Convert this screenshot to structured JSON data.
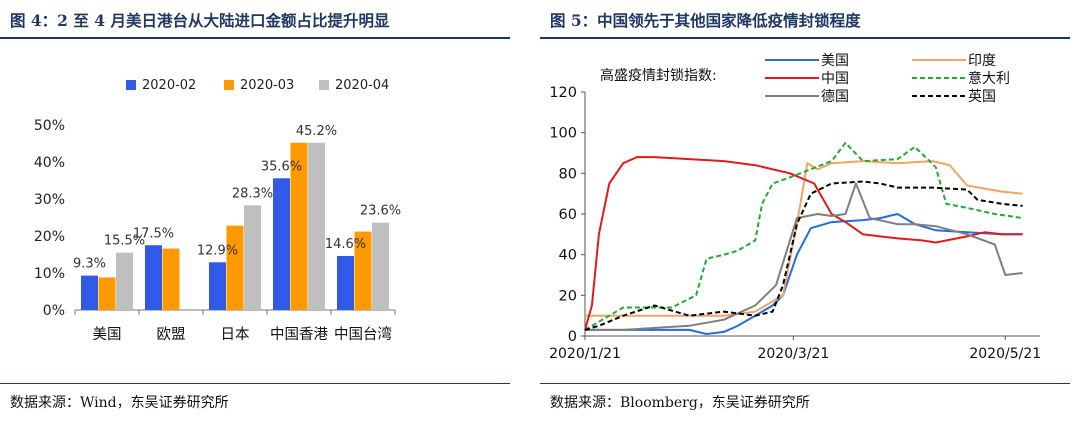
{
  "left": {
    "title": "图 4：2 至 4 月美日港台从大陆进口金额占比提升明显",
    "source": "数据来源：Wind，东吴证券研究所"
  },
  "right": {
    "title": "图 5：中国领先于其他国家降低疫情封锁程度",
    "source": "数据来源：Bloomberg，东吴证券研究所"
  },
  "chart_data": [
    {
      "type": "bar",
      "categories": [
        "美国",
        "欧盟",
        "日本",
        "中国香港",
        "中国台湾"
      ],
      "series": [
        {
          "name": "2020-02",
          "color": "#2f5be6",
          "values": [
            9.3,
            17.5,
            12.9,
            35.6,
            14.6
          ]
        },
        {
          "name": "2020-03",
          "color": "#ff9900",
          "values": [
            8.8,
            16.6,
            22.8,
            45.2,
            21.2
          ]
        },
        {
          "name": "2020-04",
          "color": "#bfbfbf",
          "values": [
            15.5,
            null,
            28.3,
            45.2,
            23.6
          ]
        }
      ],
      "data_labels": [
        {
          "text": "9.3%",
          "category": 0,
          "series": 0
        },
        {
          "text": "15.5%",
          "category": 0,
          "series": 2
        },
        {
          "text": "17.5%",
          "category": 1,
          "series": 0
        },
        {
          "text": "12.9%",
          "category": 2,
          "series": 0
        },
        {
          "text": "28.3%",
          "category": 2,
          "series": 2
        },
        {
          "text": "35.6%",
          "category": 3,
          "series": 0
        },
        {
          "text": "45.2%",
          "category": 3,
          "series": 2
        },
        {
          "text": "14.6%",
          "category": 4,
          "series": 0
        },
        {
          "text": "23.6%",
          "category": 4,
          "series": 2
        }
      ],
      "yticks": [
        "0%",
        "10%",
        "20%",
        "30%",
        "40%",
        "50%"
      ],
      "ylim": [
        0,
        50
      ],
      "legend": "top",
      "grid": false
    },
    {
      "type": "line",
      "legend_title": "高盛疫情封锁指数:",
      "xticks": [
        "2020/1/21",
        "2020/3/21",
        "2020/5/21"
      ],
      "yticks": [
        0,
        20,
        40,
        60,
        80,
        100,
        120
      ],
      "ylim": [
        0,
        120
      ],
      "xlim": [
        "2020-01-21",
        "2020-05-31"
      ],
      "legend": "top",
      "grid": false,
      "series": [
        {
          "name": "美国",
          "color": "#1f6fe0",
          "dash": "solid",
          "x": [
            "2020-01-21",
            "2020-02-05",
            "2020-02-20",
            "2020-02-25",
            "2020-03-01",
            "2020-03-05",
            "2020-03-10",
            "2020-03-15",
            "2020-03-18",
            "2020-03-22",
            "2020-03-26",
            "2020-04-01",
            "2020-04-10",
            "2020-04-15",
            "2020-04-20",
            "2020-04-25",
            "2020-05-01",
            "2020-05-10",
            "2020-05-20",
            "2020-05-26"
          ],
          "y": [
            3,
            3,
            3,
            1,
            2,
            5,
            10,
            15,
            20,
            40,
            53,
            56,
            57,
            58,
            60,
            55,
            52,
            51,
            50,
            50
          ]
        },
        {
          "name": "印度",
          "color": "#f4a460",
          "dash": "solid",
          "x": [
            "2020-01-21",
            "2020-02-01",
            "2020-02-20",
            "2020-03-01",
            "2020-03-10",
            "2020-03-18",
            "2020-03-22",
            "2020-03-25",
            "2020-03-28",
            "2020-04-01",
            "2020-04-10",
            "2020-04-20",
            "2020-04-30",
            "2020-05-05",
            "2020-05-10",
            "2020-05-20",
            "2020-05-26"
          ],
          "y": [
            10,
            10,
            10,
            10,
            12,
            20,
            55,
            85,
            82,
            85,
            86,
            85,
            86,
            84,
            74,
            71,
            70
          ]
        },
        {
          "name": "中国",
          "color": "#e31a1c",
          "dash": "solid",
          "x": [
            "2020-01-21",
            "2020-01-23",
            "2020-01-25",
            "2020-01-28",
            "2020-02-01",
            "2020-02-05",
            "2020-02-10",
            "2020-02-20",
            "2020-03-01",
            "2020-03-10",
            "2020-03-20",
            "2020-03-27",
            "2020-04-01",
            "2020-04-05",
            "2020-04-10",
            "2020-04-15",
            "2020-04-20",
            "2020-04-27",
            "2020-05-01",
            "2020-05-10",
            "2020-05-15",
            "2020-05-20",
            "2020-05-26"
          ],
          "y": [
            3,
            15,
            50,
            75,
            85,
            88,
            88,
            87,
            86,
            84,
            80,
            75,
            60,
            56,
            50,
            49,
            48,
            47,
            46,
            49,
            51,
            50,
            50
          ]
        },
        {
          "name": "意大利",
          "color": "#22aa33",
          "dash": "dashed",
          "x": [
            "2020-01-21",
            "2020-02-01",
            "2020-02-15",
            "2020-02-22",
            "2020-02-25",
            "2020-03-01",
            "2020-03-05",
            "2020-03-10",
            "2020-03-12",
            "2020-03-15",
            "2020-03-20",
            "2020-04-01",
            "2020-04-05",
            "2020-04-10",
            "2020-04-20",
            "2020-04-25",
            "2020-05-01",
            "2020-05-04",
            "2020-05-10",
            "2020-05-18",
            "2020-05-26"
          ],
          "y": [
            3,
            14,
            14,
            20,
            38,
            40,
            42,
            47,
            65,
            75,
            78,
            86,
            95,
            86,
            87,
            93,
            83,
            65,
            63,
            60,
            58
          ]
        },
        {
          "name": "德国",
          "color": "#7f7f7f",
          "dash": "solid",
          "x": [
            "2020-01-21",
            "2020-02-01",
            "2020-02-20",
            "2020-03-01",
            "2020-03-10",
            "2020-03-16",
            "2020-03-22",
            "2020-03-28",
            "2020-04-01",
            "2020-04-05",
            "2020-04-08",
            "2020-04-12",
            "2020-04-20",
            "2020-04-25",
            "2020-05-01",
            "2020-05-10",
            "2020-05-18",
            "2020-05-21",
            "2020-05-26"
          ],
          "y": [
            3,
            3,
            5,
            8,
            15,
            25,
            58,
            60,
            59,
            60,
            75,
            58,
            55,
            55,
            54,
            50,
            45,
            30,
            31
          ]
        },
        {
          "name": "英国",
          "color": "#000000",
          "dash": "dashed",
          "x": [
            "2020-01-21",
            "2020-01-25",
            "2020-02-01",
            "2020-02-10",
            "2020-02-20",
            "2020-03-01",
            "2020-03-10",
            "2020-03-15",
            "2020-03-18",
            "2020-03-22",
            "2020-03-26",
            "2020-04-01",
            "2020-04-10",
            "2020-04-15",
            "2020-04-20",
            "2020-04-30",
            "2020-05-10",
            "2020-05-13",
            "2020-05-20",
            "2020-05-26"
          ],
          "y": [
            3,
            5,
            10,
            15,
            10,
            12,
            10,
            12,
            25,
            55,
            70,
            75,
            76,
            75,
            73,
            73,
            72,
            67,
            65,
            64
          ]
        }
      ]
    }
  ]
}
